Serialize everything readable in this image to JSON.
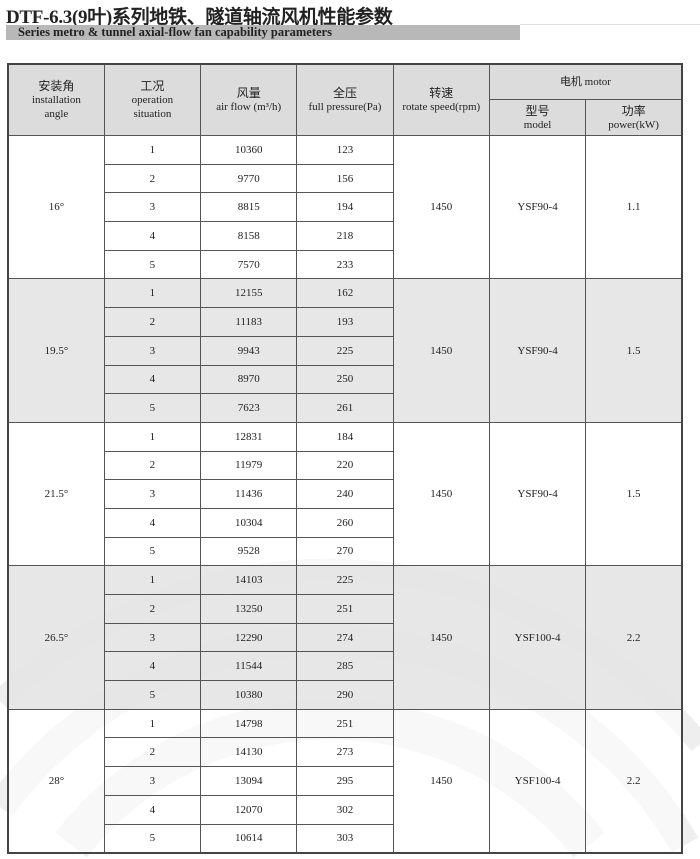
{
  "title": "DTF-6.3(9叶)系列地铁、隧道轴流风机性能参数",
  "subtitle": "Series metro & tunnel axial-flow fan capability parameters",
  "colors": {
    "header_bg": "#dcdcdc",
    "shade_bg": "#e4e4e4",
    "subtitle_bar": "#b8b8b8"
  },
  "headers": {
    "angle": {
      "cn": "安装角",
      "en1": "installation",
      "en2": "angle"
    },
    "situation": {
      "cn": "工况",
      "en1": "operation",
      "en2": "situation"
    },
    "airflow": {
      "cn": "风量",
      "en": "air flow (m³/h)"
    },
    "pressure": {
      "cn": "全压",
      "en": "full pressure(Pa)"
    },
    "speed": {
      "cn": "转速",
      "en": "rotate speed(rpm)"
    },
    "motor": {
      "label": "电机 motor"
    },
    "model": {
      "cn": "型号",
      "en": "model"
    },
    "power": {
      "cn": "功率",
      "en": "power(kW)"
    }
  },
  "groups": [
    {
      "angle": "16°",
      "speed": "1450",
      "model": "YSF90-4",
      "power": "1.1",
      "rows": [
        [
          "1",
          "10360",
          "123"
        ],
        [
          "2",
          "9770",
          "156"
        ],
        [
          "3",
          "8815",
          "194"
        ],
        [
          "4",
          "8158",
          "218"
        ],
        [
          "5",
          "7570",
          "233"
        ]
      ]
    },
    {
      "angle": "19.5°",
      "speed": "1450",
      "model": "YSF90-4",
      "power": "1.5",
      "rows": [
        [
          "1",
          "12155",
          "162"
        ],
        [
          "2",
          "11183",
          "193"
        ],
        [
          "3",
          "9943",
          "225"
        ],
        [
          "4",
          "8970",
          "250"
        ],
        [
          "5",
          "7623",
          "261"
        ]
      ]
    },
    {
      "angle": "21.5°",
      "speed": "1450",
      "model": "YSF90-4",
      "power": "1.5",
      "rows": [
        [
          "1",
          "12831",
          "184"
        ],
        [
          "2",
          "11979",
          "220"
        ],
        [
          "3",
          "11436",
          "240"
        ],
        [
          "4",
          "10304",
          "260"
        ],
        [
          "5",
          "9528",
          "270"
        ]
      ]
    },
    {
      "angle": "26.5°",
      "speed": "1450",
      "model": "YSF100-4",
      "power": "2.2",
      "rows": [
        [
          "1",
          "14103",
          "225"
        ],
        [
          "2",
          "13250",
          "251"
        ],
        [
          "3",
          "12290",
          "274"
        ],
        [
          "4",
          "11544",
          "285"
        ],
        [
          "5",
          "10380",
          "290"
        ]
      ]
    },
    {
      "angle": "28°",
      "speed": "1450",
      "model": "YSF100-4",
      "power": "2.2",
      "rows": [
        [
          "1",
          "14798",
          "251"
        ],
        [
          "2",
          "14130",
          "273"
        ],
        [
          "3",
          "13094",
          "295"
        ],
        [
          "4",
          "12070",
          "302"
        ],
        [
          "5",
          "10614",
          "303"
        ]
      ]
    }
  ]
}
